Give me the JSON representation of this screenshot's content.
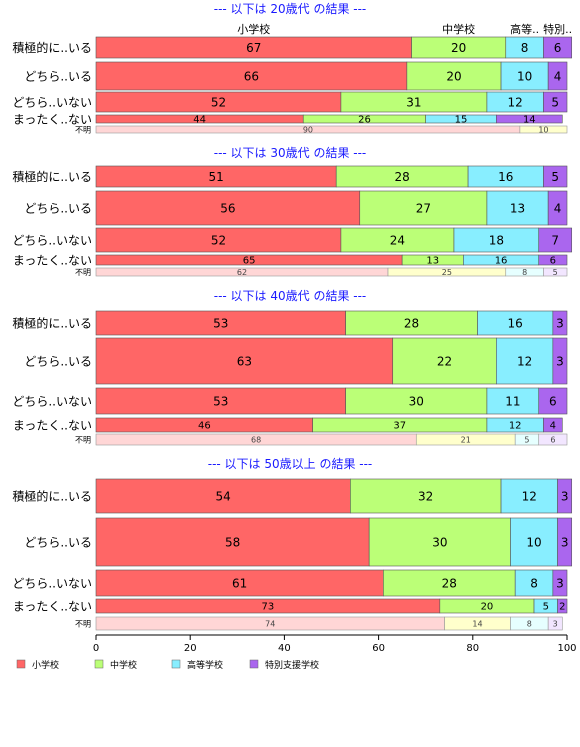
{
  "chart_data": {
    "type": "bar",
    "orientation": "horizontal",
    "stacked": true,
    "xlim": [
      0,
      100
    ],
    "x_ticks": [
      "0",
      "20",
      "40",
      "60",
      "80",
      "100"
    ],
    "grid": false,
    "legend_placement": "bottom-left",
    "column_headers": [
      "小学校",
      "中学校",
      "高等..",
      "特別.."
    ],
    "series": [
      {
        "name": "小学校",
        "color": "#ff6666"
      },
      {
        "name": "中学校",
        "color": "#bbff77"
      },
      {
        "name": "高等学校",
        "color": "#88eeff"
      },
      {
        "name": "特別支援学校",
        "color": "#aa66ee"
      }
    ],
    "panels": [
      {
        "title": "--- 以下は 20歳代 の結果 ---",
        "categories": [
          "積極的に..いる",
          "どちら..いる",
          "どちら..いない",
          "まったく..ない",
          "不明"
        ],
        "values": [
          [
            67,
            20,
            8,
            6
          ],
          [
            66,
            20,
            10,
            4
          ],
          [
            52,
            31,
            12,
            5
          ],
          [
            44,
            26,
            15,
            14
          ],
          [
            90,
            10,
            0,
            0
          ]
        ],
        "labels": [
          [
            "67",
            "20",
            "8",
            "6"
          ],
          [
            "66",
            "20",
            "10",
            "4"
          ],
          [
            "52",
            "31",
            "12",
            "5"
          ],
          [
            "44",
            "26",
            "15",
            "14"
          ],
          [
            "90",
            "10",
            "",
            ""
          ]
        ],
        "show_column_headers": true
      },
      {
        "title": "--- 以下は 30歳代 の結果 ---",
        "categories": [
          "積極的に..いる",
          "どちら..いる",
          "どちら..いない",
          "まったく..ない",
          "不明"
        ],
        "values": [
          [
            51,
            28,
            16,
            5
          ],
          [
            56,
            27,
            13,
            4
          ],
          [
            52,
            24,
            18,
            7
          ],
          [
            65,
            13,
            16,
            6
          ],
          [
            62,
            25,
            8,
            5
          ]
        ],
        "labels": [
          [
            "51",
            "28",
            "16",
            "5"
          ],
          [
            "56",
            "27",
            "13",
            "4"
          ],
          [
            "52",
            "24",
            "18",
            "7"
          ],
          [
            "65",
            "13",
            "16",
            "6"
          ],
          [
            "62",
            "25",
            "8",
            "5"
          ]
        ]
      },
      {
        "title": "--- 以下は 40歳代 の結果 ---",
        "categories": [
          "積極的に..いる",
          "どちら..いる",
          "どちら..いない",
          "まったく..ない",
          "不明"
        ],
        "values": [
          [
            53,
            28,
            16,
            3
          ],
          [
            63,
            22,
            12,
            3
          ],
          [
            53,
            30,
            11,
            6
          ],
          [
            46,
            37,
            12,
            4
          ],
          [
            68,
            21,
            5,
            6
          ]
        ],
        "labels": [
          [
            "53",
            "28",
            "16",
            "3"
          ],
          [
            "63",
            "22",
            "12",
            "3"
          ],
          [
            "53",
            "30",
            "11",
            "6"
          ],
          [
            "46",
            "37",
            "12",
            "4"
          ],
          [
            "68",
            "21",
            "5",
            "6"
          ]
        ]
      },
      {
        "title": "--- 以下は 50歳以上 の結果 ---",
        "categories": [
          "積極的に..いる",
          "どちら..いる",
          "どちら..いない",
          "まったく..ない",
          "不明"
        ],
        "values": [
          [
            54,
            32,
            12,
            3
          ],
          [
            58,
            30,
            10,
            3
          ],
          [
            61,
            28,
            8,
            3
          ],
          [
            73,
            20,
            5,
            2
          ],
          [
            74,
            14,
            8,
            3
          ]
        ],
        "labels": [
          [
            "54",
            "32",
            "12",
            "3"
          ],
          [
            "58",
            "30",
            "10",
            "3"
          ],
          [
            "61",
            "28",
            "8",
            "3"
          ],
          [
            "73",
            "20",
            "5",
            "2"
          ],
          [
            "74",
            "14",
            "8",
            "3"
          ]
        ]
      }
    ]
  }
}
